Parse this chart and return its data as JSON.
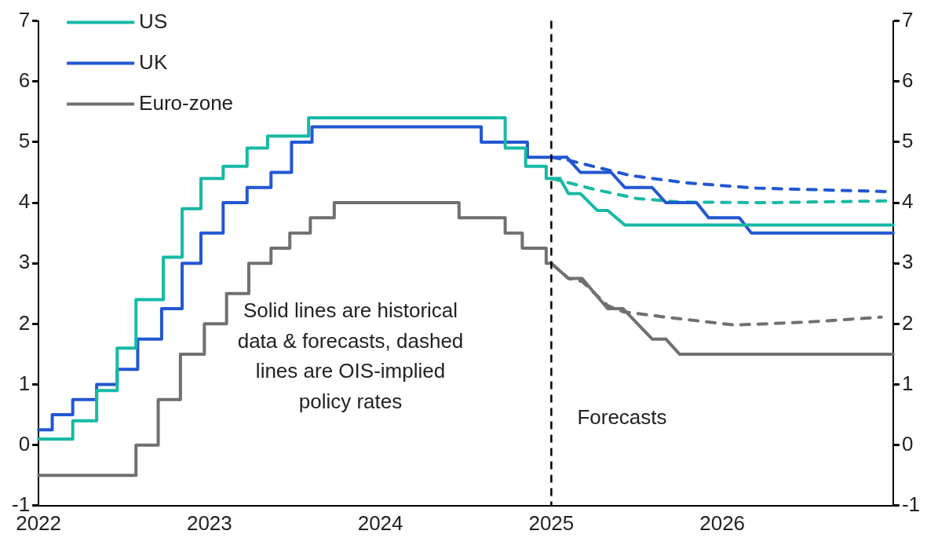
{
  "chart_data": {
    "type": "line",
    "annotations": [
      "Solid lines are historical data & forecasts, dashed lines are OIS-implied policy rates"
    ],
    "xlim": [
      2022,
      2027
    ],
    "xticks": [
      2022,
      2023,
      2024,
      2025,
      2026
    ],
    "ylim": [
      -1,
      7
    ],
    "yticks": [
      -1,
      0,
      1,
      2,
      3,
      4,
      5,
      6,
      7
    ],
    "y2lim": [
      -1,
      7
    ],
    "y2ticks": [
      -1,
      0,
      1,
      2,
      3,
      4,
      5,
      6,
      7
    ],
    "legend": "top left",
    "marker": "none",
    "ref_lines": [
      {
        "axis": "x",
        "value": 2025,
        "label": "Forecasts",
        "color": "#000000",
        "line_style": "dashed"
      }
    ],
    "series": [
      {
        "name": "US",
        "type": "step",
        "color": "#17b9a5",
        "line_style": "solid",
        "x": [
          2022,
          2022.2,
          2022.34,
          2022.46,
          2022.57,
          2022.73,
          2022.84,
          2022.95,
          2023.08,
          2023.22,
          2023.34,
          2023.58,
          2024.73,
          2024.85,
          2024.97,
          2025.05
        ],
        "values": [
          0.1,
          0.1,
          0.4,
          0.9,
          1.6,
          2.4,
          3.1,
          3.9,
          4.4,
          4.6,
          4.9,
          5.1,
          5.4,
          4.9,
          4.6,
          4.4
        ]
      },
      {
        "name": "UK",
        "type": "step",
        "color": "#2257d3",
        "line_style": "solid",
        "x": [
          2022,
          2022.08,
          2022.2,
          2022.34,
          2022.46,
          2022.58,
          2022.72,
          2022.84,
          2022.95,
          2023.08,
          2023.22,
          2023.36,
          2023.48,
          2023.6,
          2024.59,
          2024.86,
          2025.09
        ],
        "values": [
          0.25,
          0.25,
          0.5,
          0.75,
          1.0,
          1.25,
          1.75,
          2.25,
          3.0,
          3.5,
          4.0,
          4.25,
          4.5,
          5.0,
          5.25,
          5.0,
          4.75
        ]
      },
      {
        "name": "Euro-zone",
        "type": "step",
        "color": "#707070",
        "line_style": "solid",
        "x": [
          2022,
          2022.57,
          2022.7,
          2022.83,
          2022.97,
          2023.1,
          2023.23,
          2023.36,
          2023.47,
          2023.59,
          2023.73,
          2024.46,
          2024.73,
          2024.83,
          2024.97,
          2025.0
        ],
        "values": [
          -0.5,
          -0.5,
          0,
          0.75,
          1.5,
          2.0,
          2.5,
          3.0,
          3.25,
          3.5,
          3.75,
          4.0,
          3.75,
          3.5,
          3.25,
          3.0
        ]
      },
      {
        "color": "#17b9a5",
        "line_style": "solid",
        "x": [
          2025.05,
          2025.1,
          2025.17,
          2025.27,
          2025.33,
          2025.43,
          2027
        ],
        "values": [
          4.4,
          4.15,
          4.15,
          3.87,
          3.87,
          3.63,
          3.63
        ]
      },
      {
        "color": "#2257d3",
        "line_style": "solid",
        "x": [
          2025.09,
          2025.17,
          2025.35,
          2025.43,
          2025.59,
          2025.67,
          2025.85,
          2025.92,
          2026.1,
          2026.17,
          2027
        ],
        "values": [
          4.75,
          4.5,
          4.5,
          4.25,
          4.25,
          4.0,
          4.0,
          3.75,
          3.75,
          3.5,
          3.5
        ]
      },
      {
        "color": "#707070",
        "line_style": "solid",
        "x": [
          2025.0,
          2025.1,
          2025.18,
          2025.33,
          2025.42,
          2025.59,
          2025.67,
          2025.75,
          2027
        ],
        "values": [
          3.0,
          2.75,
          2.75,
          2.25,
          2.25,
          1.75,
          1.75,
          1.5,
          1.5
        ]
      },
      {
        "color": "#17b9a5",
        "line_style": "dashed",
        "x": [
          2025.0,
          2025.1,
          2025.25,
          2025.5,
          2025.75,
          2026.25,
          2027
        ],
        "values": [
          4.4,
          4.33,
          4.22,
          4.07,
          4.01,
          4.0,
          4.03
        ]
      },
      {
        "color": "#2257d3",
        "line_style": "dashed",
        "x": [
          2025.0,
          2025.1,
          2025.46,
          2025.78,
          2026.2,
          2027
        ],
        "values": [
          4.75,
          4.7,
          4.45,
          4.33,
          4.24,
          4.18
        ]
      },
      {
        "color": "#707070",
        "line_style": "dashed",
        "x": [
          2025.0,
          2025.1,
          2025.18,
          2025.33,
          2025.42,
          2025.7,
          2026.07,
          2026.5,
          2026.93
        ],
        "values": [
          3.0,
          2.75,
          2.7,
          2.3,
          2.2,
          2.1,
          1.98,
          2.03,
          2.11
        ]
      }
    ]
  }
}
